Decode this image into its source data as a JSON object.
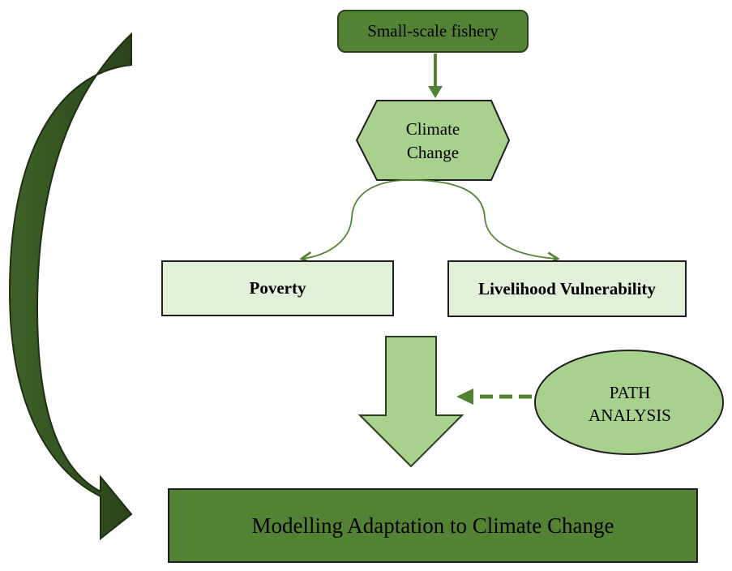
{
  "nodes": {
    "top": "Small-scale fishery",
    "climate_line1": "Climate",
    "climate_line2": "Change",
    "poverty": "Poverty",
    "livelihood": "Livelihood Vulnerability",
    "path_line1": "PATH",
    "path_line2": "ANALYSIS",
    "bottom": "Modelling Adaptation to Climate Change"
  },
  "colors": {
    "dark_green": "#548235",
    "medium_green": "#a9d18e",
    "light_green": "#e2efd9",
    "arrow_dark": "#385723",
    "line_green": "#548235"
  }
}
